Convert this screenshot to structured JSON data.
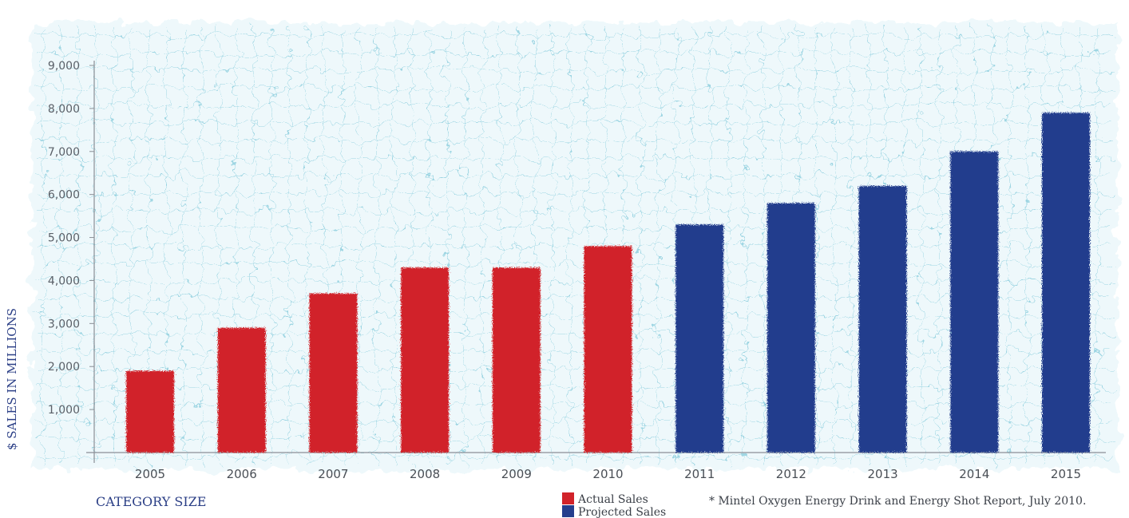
{
  "chart_data": {
    "type": "bar",
    "title": "",
    "ylabel": "$ SALES IN MILLIONS",
    "xlabel": "CATEGORY SIZE",
    "categories": [
      "2005",
      "2006",
      "2007",
      "2008",
      "2009",
      "2010",
      "2011",
      "2012",
      "2013",
      "2014",
      "2015"
    ],
    "series": [
      {
        "name": "Actual Sales",
        "color": "#d1232a",
        "values": [
          1900,
          2900,
          3700,
          4300,
          4300,
          4800,
          null,
          null,
          null,
          null,
          null
        ]
      },
      {
        "name": "Projected Sales",
        "color": "#243e8d",
        "values": [
          null,
          null,
          null,
          null,
          null,
          null,
          5300,
          5800,
          6200,
          7000,
          7900
        ]
      }
    ],
    "ylim": [
      0,
      9000
    ],
    "yticks": [
      1000,
      2000,
      3000,
      4000,
      5000,
      6000,
      7000,
      8000,
      9000
    ],
    "ytick_labels": [
      "1,000",
      "2,000",
      "3,000",
      "4,000",
      "5,000",
      "6,000",
      "7,000",
      "8,000",
      "9,000"
    ],
    "grid": true,
    "legend_position": "bottom-right"
  },
  "footnote": "* Mintel Oxygen Energy Drink and Energy Shot Report, July 2010."
}
